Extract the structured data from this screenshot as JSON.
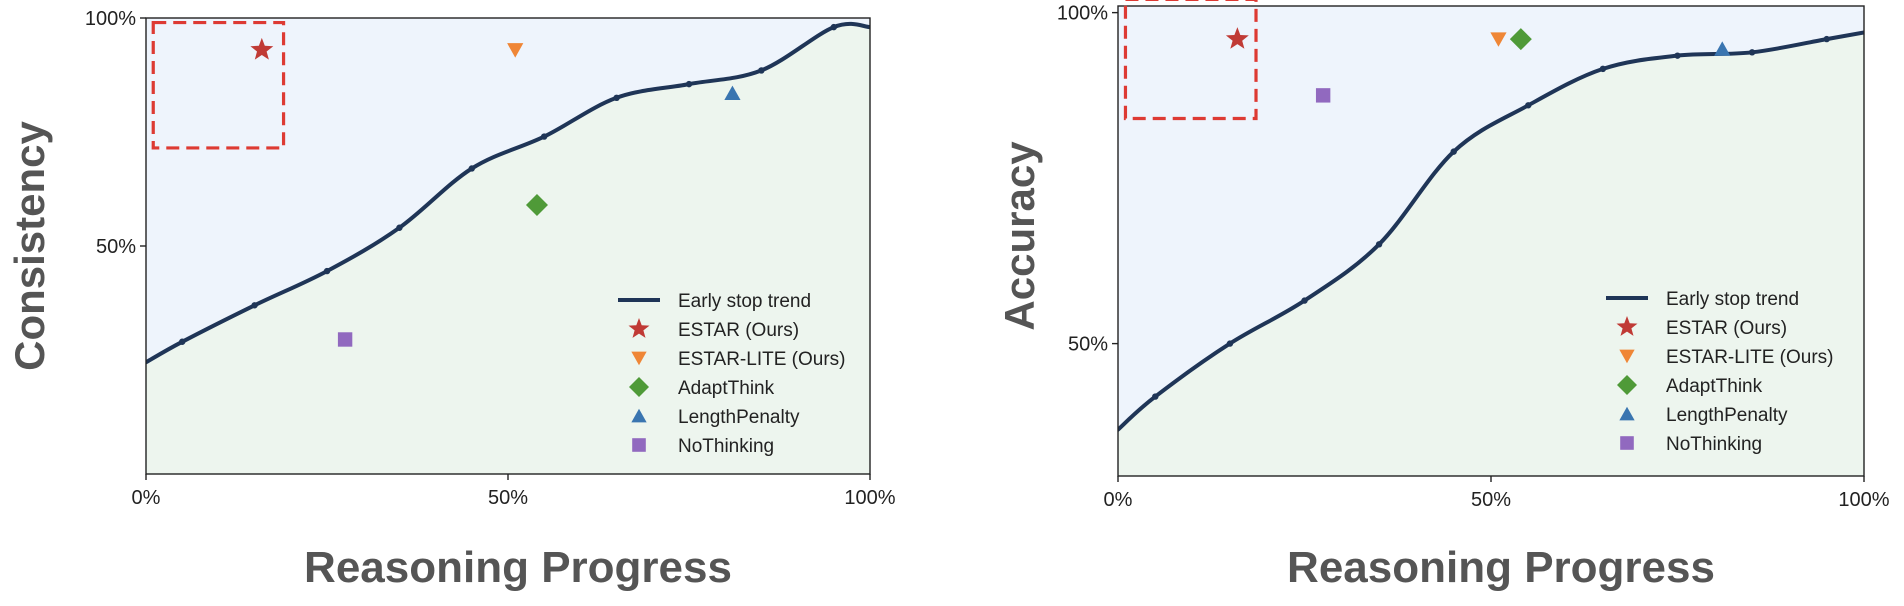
{
  "chart_data": [
    {
      "type": "line",
      "xlabel": "Reasoning Progress",
      "ylabel": "Consistency",
      "xlim": [
        0,
        100
      ],
      "ylim": [
        0,
        100
      ],
      "x_ticks": [
        0,
        50,
        100
      ],
      "x_tick_labels": [
        "0%",
        "50%",
        "100%"
      ],
      "y_ticks": [
        50,
        100
      ],
      "y_tick_labels": [
        "50%",
        "100%"
      ],
      "grid": false,
      "legend_position": "lower-right",
      "trend": {
        "name": "Early stop trend",
        "color": "#1f3557",
        "x": [
          0,
          5,
          15,
          25,
          35,
          45,
          55,
          65,
          75,
          85,
          95,
          100
        ],
        "y": [
          24.5,
          29,
          37,
          44.5,
          54,
          67,
          74,
          82.5,
          85.5,
          88.5,
          98,
          98
        ]
      },
      "series": [
        {
          "name": "ESTAR (Ours)",
          "marker": "star",
          "color": "#c03a35",
          "x": 16,
          "y": 93
        },
        {
          "name": "ESTAR-LITE (Ours)",
          "marker": "triangle-down",
          "color": "#ef8636",
          "x": 51,
          "y": 93
        },
        {
          "name": "AdaptThink",
          "marker": "diamond",
          "color": "#4f9a38",
          "x": 54,
          "y": 59
        },
        {
          "name": "LengthPenalty",
          "marker": "triangle-up",
          "color": "#3a75b0",
          "x": 81,
          "y": 83.5
        },
        {
          "name": "NoThinking",
          "marker": "square",
          "color": "#9169bf",
          "x": 27.5,
          "y": 29.5
        }
      ],
      "highlight_box": {
        "x": [
          1,
          19
        ],
        "y": [
          71.5,
          99
        ],
        "color": "#dd3a33"
      },
      "fill_above_color": "#eef4fc",
      "fill_below_color": "#edf5ee"
    },
    {
      "type": "line",
      "xlabel": "Reasoning Progress",
      "ylabel": "Accuracy",
      "xlim": [
        0,
        100
      ],
      "ylim": [
        30,
        101
      ],
      "x_ticks": [
        0,
        50,
        100
      ],
      "x_tick_labels": [
        "0%",
        "50%",
        "100%"
      ],
      "y_ticks": [
        50,
        100
      ],
      "y_tick_labels": [
        "50%",
        "100%"
      ],
      "grid": false,
      "legend_position": "lower-right",
      "trend": {
        "name": "Early stop trend",
        "color": "#1f3557",
        "x": [
          0,
          5,
          15,
          25,
          35,
          45,
          55,
          65,
          75,
          85,
          95,
          100
        ],
        "y": [
          37,
          42,
          50,
          56.5,
          65,
          79,
          86,
          91.5,
          93.5,
          94,
          96,
          97
        ]
      },
      "series": [
        {
          "name": "ESTAR (Ours)",
          "marker": "star",
          "color": "#c03a35",
          "x": 16,
          "y": 96
        },
        {
          "name": "ESTAR-LITE (Ours)",
          "marker": "triangle-down",
          "color": "#ef8636",
          "x": 51,
          "y": 96
        },
        {
          "name": "AdaptThink",
          "marker": "diamond",
          "color": "#4f9a38",
          "x": 54,
          "y": 96
        },
        {
          "name": "LengthPenalty",
          "marker": "triangle-up",
          "color": "#3a75b0",
          "x": 81,
          "y": 94.5
        },
        {
          "name": "NoThinking",
          "marker": "square",
          "color": "#9169bf",
          "x": 27.5,
          "y": 87.5
        }
      ],
      "highlight_box": {
        "x": [
          1,
          18.5
        ],
        "y": [
          84,
          102
        ],
        "color": "#dd3a33"
      },
      "fill_above_color": "#eef4fc",
      "fill_below_color": "#edf5ee"
    }
  ]
}
